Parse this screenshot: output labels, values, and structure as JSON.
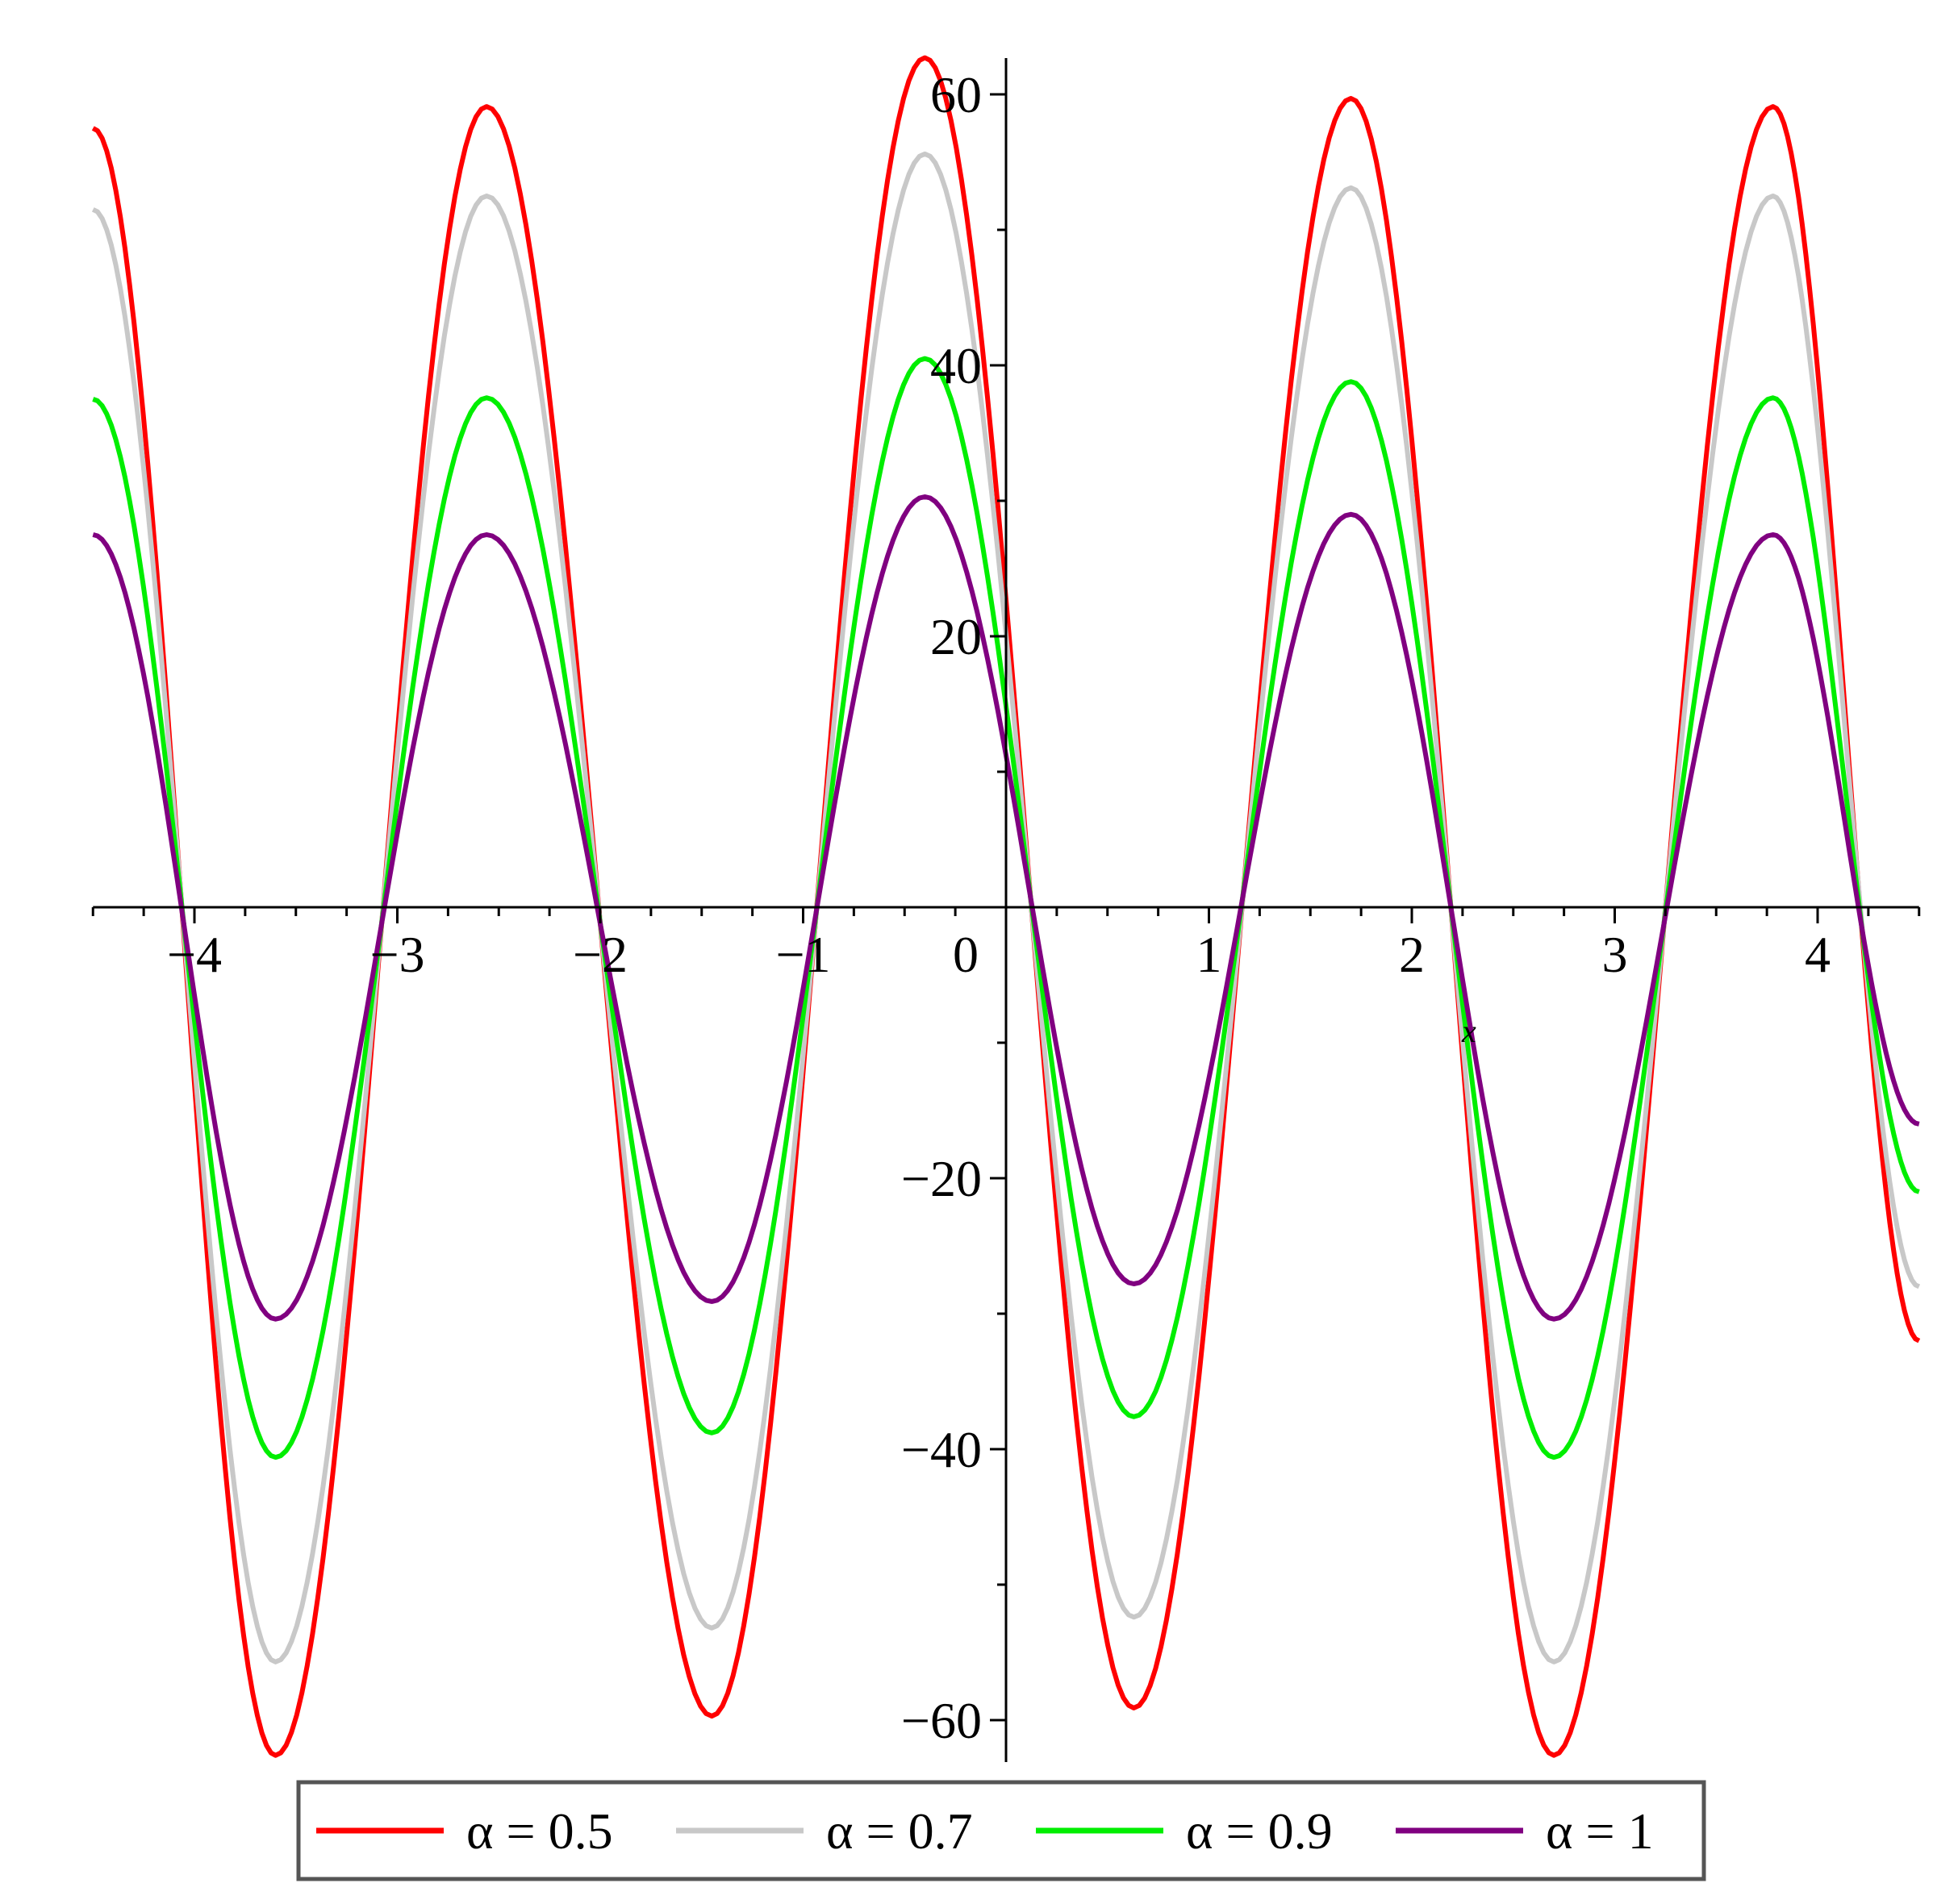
{
  "chart_data": {
    "type": "line",
    "title": "",
    "xlabel": "x",
    "ylabel": "",
    "xlim": [
      -4.5,
      4.5
    ],
    "ylim": [
      -63,
      63
    ],
    "grid": false,
    "legend_position": "bottom",
    "x_ticks": [
      -4,
      -3,
      -2,
      -1,
      0,
      1,
      2,
      3,
      4
    ],
    "x_tick_labels": [
      "−4",
      "−3",
      "−2",
      "−1",
      "0",
      "1",
      "2",
      "3",
      "4"
    ],
    "y_ticks": [
      -60,
      -40,
      -20,
      20,
      40,
      60
    ],
    "y_tick_labels": [
      "−60",
      "−40",
      "−20",
      "20",
      "40",
      "60"
    ],
    "series": [
      {
        "name": "α = 0.5",
        "color": "#ff0000",
        "x": [
          -4.5,
          -3.6,
          -2.56,
          -1.45,
          -0.4,
          0.63,
          1.7,
          2.7,
          3.78,
          4.5
        ],
        "y": [
          57.5,
          -62.6,
          59.1,
          -59.7,
          62.7,
          -59.1,
          59.7,
          -62.6,
          59.1,
          -32
        ]
      },
      {
        "name": "α = 0.7",
        "color": "#c8c8c8",
        "x": [
          -4.5,
          -3.6,
          -2.56,
          -1.45,
          -0.4,
          0.63,
          1.7,
          2.7,
          3.78,
          4.5
        ],
        "y": [
          51.5,
          -55.7,
          52.5,
          -53.2,
          55.6,
          -52.4,
          53.1,
          -55.7,
          52.5,
          -28
        ]
      },
      {
        "name": "α = 0.9",
        "color": "#00ee00",
        "x": [
          -4.5,
          -3.6,
          -2.56,
          -1.45,
          -0.4,
          0.63,
          1.7,
          2.7,
          3.78,
          4.5
        ],
        "y": [
          37.5,
          -40.6,
          37.6,
          -38.8,
          40.5,
          -37.6,
          38.8,
          -40.6,
          37.6,
          -21
        ]
      },
      {
        "name": "α = 1",
        "color": "#800080",
        "x": [
          -4.5,
          -3.6,
          -2.56,
          -1.45,
          -0.4,
          0.63,
          1.7,
          2.7,
          3.78,
          4.5
        ],
        "y": [
          27.5,
          -30.4,
          27.5,
          -29.1,
          30.3,
          -27.8,
          29,
          -30.4,
          27.5,
          -16
        ]
      }
    ]
  }
}
